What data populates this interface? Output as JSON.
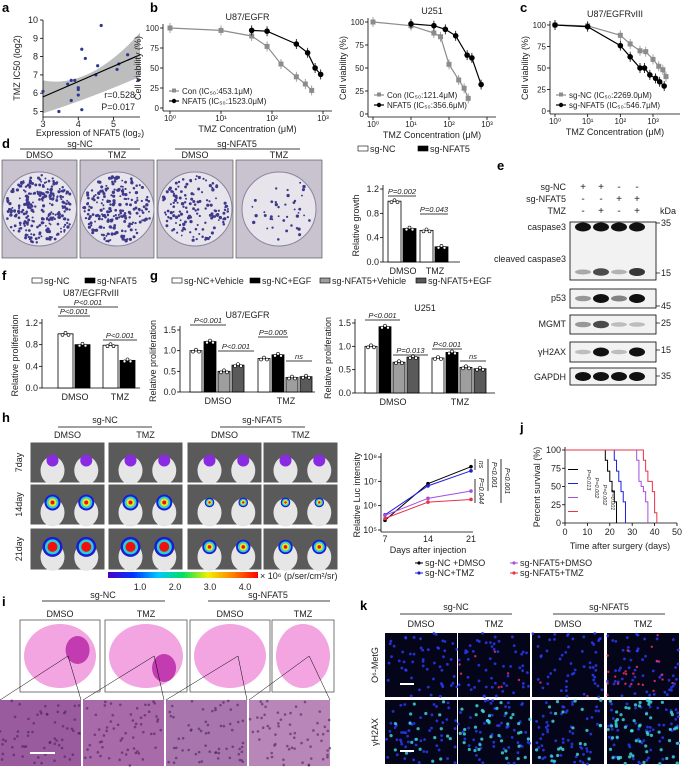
{
  "panels": {
    "a": "a",
    "b": "b",
    "c": "c",
    "d": "d",
    "e": "e",
    "f": "f",
    "g": "g",
    "h": "h",
    "i": "i",
    "j": "j",
    "k": "k"
  },
  "colony": {
    "groups": [
      "sg-NC",
      "sg-NFAT5"
    ],
    "treatments": [
      "DMSO",
      "TMZ",
      "DMSO",
      "TMZ"
    ]
  },
  "blot": {
    "conditions": [
      {
        "label": "sg-NC",
        "values": [
          "+",
          "+",
          "-",
          "-"
        ]
      },
      {
        "label": "sg-NFAT5",
        "values": [
          "-",
          "-",
          "+",
          "+"
        ]
      },
      {
        "label": "TMZ",
        "values": [
          "-",
          "+",
          "-",
          "+"
        ]
      }
    ],
    "kda_label": "kDa",
    "bands": [
      {
        "label": "caspase3",
        "markers": [
          "35"
        ]
      },
      {
        "label": "cleaved caspase3",
        "markers": [
          "15"
        ]
      },
      {
        "label": "p53",
        "markers": [
          "45"
        ]
      },
      {
        "label": "MGMT",
        "markers": [
          "25"
        ]
      },
      {
        "label": "γH2AX",
        "markers": [
          "15"
        ]
      },
      {
        "label": "GAPDH",
        "markers": [
          "35"
        ]
      }
    ]
  },
  "imaging": {
    "groups": [
      "sg-NC",
      "sg-NFAT5"
    ],
    "treatments": [
      "DMSO",
      "TMZ",
      "DMSO",
      "TMZ"
    ],
    "days": [
      "7day",
      "14day",
      "21day"
    ],
    "colorbar_ticks": [
      "1.0",
      "2.0",
      "3.0",
      "4.0"
    ],
    "colorbar_unit": "× 10⁶ (p/ser/cm²/sr)"
  },
  "he": {
    "groups": [
      "sg-NC",
      "sg-NFAT5"
    ],
    "treatments": [
      "DMSO",
      "TMZ",
      "DMSO",
      "TMZ"
    ]
  },
  "if_stain": {
    "groups": [
      "sg-NC",
      "sg-NFAT5"
    ],
    "treatments": [
      "DMSO",
      "TMZ",
      "DMSO",
      "TMZ"
    ],
    "rows": [
      "O⁶-MetG",
      "γH2AX"
    ]
  },
  "chart_data": [
    {
      "type": "scatter",
      "ylabel": "TMZ  IC50 (log2)",
      "xlabel": "Expression of NFAT5 (log₂)",
      "xlim": [
        3,
        5.75
      ],
      "ylim": [
        4.7,
        10
      ],
      "xticks": [
        3,
        4,
        5
      ],
      "yticks": [
        5,
        6,
        7,
        8,
        9,
        10
      ],
      "points": [
        [
          3,
          6.1
        ],
        [
          3.45,
          5
        ],
        [
          3.7,
          6.5
        ],
        [
          3.8,
          6.7
        ],
        [
          3.8,
          5.6
        ],
        [
          3.9,
          6.7
        ],
        [
          4,
          6.3
        ],
        [
          4,
          6.2
        ],
        [
          4,
          5.9
        ],
        [
          4.1,
          8.4
        ],
        [
          4.1,
          5.1
        ],
        [
          4.2,
          7.9
        ],
        [
          4.5,
          7
        ],
        [
          4.55,
          7.5
        ],
        [
          4.65,
          9.7
        ],
        [
          5.1,
          7.3
        ],
        [
          5.15,
          7.6
        ],
        [
          5.4,
          8.1
        ],
        [
          5.7,
          6.7
        ]
      ],
      "fit": [
        [
          3,
          5.8
        ],
        [
          5.75,
          8.1
        ]
      ],
      "ci": true,
      "annotations": [
        "r=0.528",
        "P=0.017"
      ],
      "point_color": "#2b3990",
      "band_color": "#bdbdbd"
    },
    {
      "type": "line",
      "title": "U87/EGFR",
      "ylabel": "Cell viability (%)",
      "xlabel": "TMZ Concentration  (μM)",
      "xscale": "log",
      "xticks": [
        "10⁰",
        "10¹",
        "10²",
        "10³"
      ],
      "ylim": [
        0,
        100
      ],
      "yticks": [
        0,
        25,
        50,
        75,
        100
      ],
      "series": [
        {
          "name": "Con (IC₅₀:453.1μM)",
          "color": "#8c8c8c",
          "marker": "square",
          "x": [
            1,
            10,
            40,
            80,
            150,
            300,
            450,
            600
          ],
          "y": [
            100,
            97,
            90,
            77,
            55,
            39,
            30,
            22
          ]
        },
        {
          "name": "NFAT5 (IC₅₀:1523.0μM)",
          "color": "#000000",
          "marker": "circle",
          "x": [
            40,
            80,
            300,
            500,
            700,
            900
          ],
          "y": [
            97,
            96,
            80,
            69,
            50,
            42
          ]
        }
      ]
    },
    {
      "type": "line",
      "title": "U251",
      "ylabel": "Cell viability (%)",
      "xlabel": "TMZ Concentration  (μM)",
      "xscale": "log",
      "xticks": [
        "10⁰",
        "10¹",
        "10²",
        "10³"
      ],
      "ylim": [
        0,
        100
      ],
      "yticks": [
        0,
        25,
        50,
        75,
        100
      ],
      "series": [
        {
          "name": "Con (IC₅₀:121.4μM)",
          "color": "#8c8c8c",
          "marker": "square",
          "x": [
            1,
            10,
            40,
            60,
            100,
            180,
            250,
            320
          ],
          "y": [
            100,
            96,
            88,
            84,
            54,
            37,
            28,
            17
          ]
        },
        {
          "name": "NFAT5 (IC₅₀:356.6μM)",
          "color": "#000000",
          "marker": "circle",
          "x": [
            10,
            40,
            80,
            150,
            300,
            400,
            700
          ],
          "y": [
            98,
            96,
            92,
            85,
            64,
            61,
            32
          ]
        }
      ]
    },
    {
      "type": "line",
      "title": "U87/EGFRvIII",
      "ylabel": "Cell viability (%)",
      "xlabel": "TMZ Concentration  (μM)",
      "xscale": "log",
      "xticks": [
        "10⁰",
        "10¹",
        "10²",
        "10³"
      ],
      "ylim": [
        0,
        100
      ],
      "yticks": [
        0,
        25,
        50,
        75,
        100
      ],
      "series": [
        {
          "name": "sg-NC (IC₅₀:2269.0μM)",
          "color": "#8c8c8c",
          "marker": "square",
          "x": [
            1,
            10,
            100,
            200,
            400,
            600,
            1000,
            1500,
            2000,
            2500
          ],
          "y": [
            100,
            99,
            88,
            78,
            70,
            69,
            60,
            52,
            48,
            40
          ]
        },
        {
          "name": "sg-NFAT5 (IC₅₀:546.7μM)",
          "color": "#000000",
          "marker": "circle",
          "x": [
            1,
            10,
            100,
            200,
            400,
            550,
            800,
            1200,
            1600,
            2200
          ],
          "y": [
            100,
            98,
            76,
            63,
            50,
            50,
            42,
            38,
            34,
            29
          ]
        }
      ]
    },
    {
      "type": "bar",
      "ylabel": "Relative  growth",
      "categories": [
        "DMSO",
        "TMZ"
      ],
      "ylim": [
        0,
        1.2
      ],
      "yticks": [
        "0.0",
        "0.4",
        "0.8",
        "1.2"
      ],
      "series": [
        {
          "name": "sg-NC",
          "color": "#ffffff",
          "values": [
            1.0,
            0.52
          ]
        },
        {
          "name": "sg-NFAT5",
          "color": "#000000",
          "values": [
            0.55,
            0.25
          ]
        }
      ],
      "annotations": [
        "P=0.002",
        "P=0.043"
      ]
    },
    {
      "type": "bar",
      "title": "U87/EGFRvIII",
      "ylabel": "Relative  proliferation",
      "categories": [
        "DMSO",
        "TMZ"
      ],
      "ylim": [
        0,
        1.2
      ],
      "yticks": [
        "0.0",
        "0.4",
        "0.8",
        "1.2"
      ],
      "series": [
        {
          "name": "sg-NC",
          "color": "#ffffff",
          "values": [
            1.0,
            0.79
          ]
        },
        {
          "name": "sg-NFAT5",
          "color": "#000000",
          "values": [
            0.8,
            0.51
          ]
        }
      ],
      "annotations": [
        "P<0.001",
        "P<0.001",
        "P<0.001"
      ]
    },
    {
      "type": "bar",
      "title": "U87/EGFR",
      "ylabel": "Relative  proliferation",
      "categories": [
        "DMSO",
        "TMZ"
      ],
      "ylim": [
        0,
        1.5
      ],
      "yticks": [
        "0.0",
        "0.5",
        "1.0",
        "1.5"
      ],
      "series": [
        {
          "name": "sg-NC+Vehicle",
          "color": "#ffffff",
          "values": [
            1.0,
            0.81
          ]
        },
        {
          "name": "sg-NC+EGF",
          "color": "#000000",
          "values": [
            1.22,
            0.9
          ]
        },
        {
          "name": "sg-NFAT5+Vehicle",
          "color": "#9e9e9e",
          "values": [
            0.5,
            0.35
          ]
        },
        {
          "name": "sg-NFAT5+EGF",
          "color": "#5a5a5a",
          "values": [
            0.65,
            0.37
          ]
        }
      ],
      "annotations": [
        "P<0.001",
        "P<0.001",
        "P=0.005",
        "ns"
      ]
    },
    {
      "type": "bar",
      "title": "U251",
      "ylabel": "Relative  proliferation",
      "categories": [
        "DMSO",
        "TMZ"
      ],
      "ylim": [
        0,
        1.5
      ],
      "yticks": [
        "0.0",
        "0.5",
        "1.0",
        "1.5"
      ],
      "series": [
        {
          "name": "sg-NC+Vehicle",
          "color": "#ffffff",
          "values": [
            1.0,
            0.75
          ]
        },
        {
          "name": "sg-NC+EGF",
          "color": "#000000",
          "values": [
            1.42,
            0.87
          ]
        },
        {
          "name": "sg-NFAT5+Vehicle",
          "color": "#9e9e9e",
          "values": [
            0.66,
            0.55
          ]
        },
        {
          "name": "sg-NFAT5+EGF",
          "color": "#5a5a5a",
          "values": [
            0.77,
            0.52
          ]
        }
      ],
      "annotations": [
        "P<0.001",
        "P=0.013",
        "P<0.001",
        "ns"
      ]
    },
    {
      "type": "line",
      "ylabel": "Relative  Luc  intensity",
      "xlabel": "Days after injection",
      "yscale": "log",
      "x": [
        7,
        14,
        21
      ],
      "xticks": [
        "7",
        "14",
        "21"
      ],
      "yticks": [
        "10⁵",
        "10⁶",
        "10⁷",
        "10⁸"
      ],
      "ylim": [
        100000,
        100000000
      ],
      "series": [
        {
          "name": "sg-NC +DMSO",
          "color": "#000000",
          "y": [
            250000,
            8000000,
            40000000
          ]
        },
        {
          "name": "sg-NC+TMZ",
          "color": "#1f1fe0",
          "y": [
            420000,
            6500000,
            27000000
          ]
        },
        {
          "name": "sg-NFAT5+DMSO",
          "color": "#a64ee0",
          "y": [
            400000,
            2000000,
            4000000
          ]
        },
        {
          "name": "sg-NFAT5+TMZ",
          "color": "#e8334a",
          "y": [
            300000,
            1400000,
            1800000
          ]
        }
      ],
      "annotations": [
        "ns",
        "P<0.001",
        "P<0.001",
        "P=0.044"
      ]
    },
    {
      "type": "line",
      "step": true,
      "ylabel": "Percent  survival  (%)",
      "xlabel": "Time after surgery  (days)",
      "xlim": [
        0,
        50
      ],
      "xticks": [
        0,
        10,
        20,
        30,
        40,
        50
      ],
      "ylim": [
        0,
        100
      ],
      "yticks": [
        0,
        25,
        50,
        75,
        100
      ],
      "series": [
        {
          "color": "#000000",
          "x": [
            0,
            18,
            19,
            20,
            21,
            22,
            23
          ],
          "y": [
            100,
            86,
            71,
            57,
            43,
            29,
            0
          ]
        },
        {
          "color": "#1f1fe0",
          "x": [
            0,
            22,
            23,
            24,
            25,
            26,
            27
          ],
          "y": [
            100,
            86,
            71,
            57,
            43,
            29,
            0
          ]
        },
        {
          "color": "#a64ee0",
          "x": [
            0,
            32,
            33,
            34,
            35,
            36,
            37
          ],
          "y": [
            100,
            86,
            57,
            50,
            43,
            29,
            0
          ]
        },
        {
          "color": "#e8334a",
          "x": [
            0,
            35,
            36,
            37,
            39,
            40,
            41
          ],
          "y": [
            100,
            86,
            71,
            57,
            43,
            14,
            0
          ]
        }
      ],
      "annotations": [
        "P=0.013",
        "P=0.002",
        "P=0.002",
        "P=0.001"
      ]
    }
  ]
}
